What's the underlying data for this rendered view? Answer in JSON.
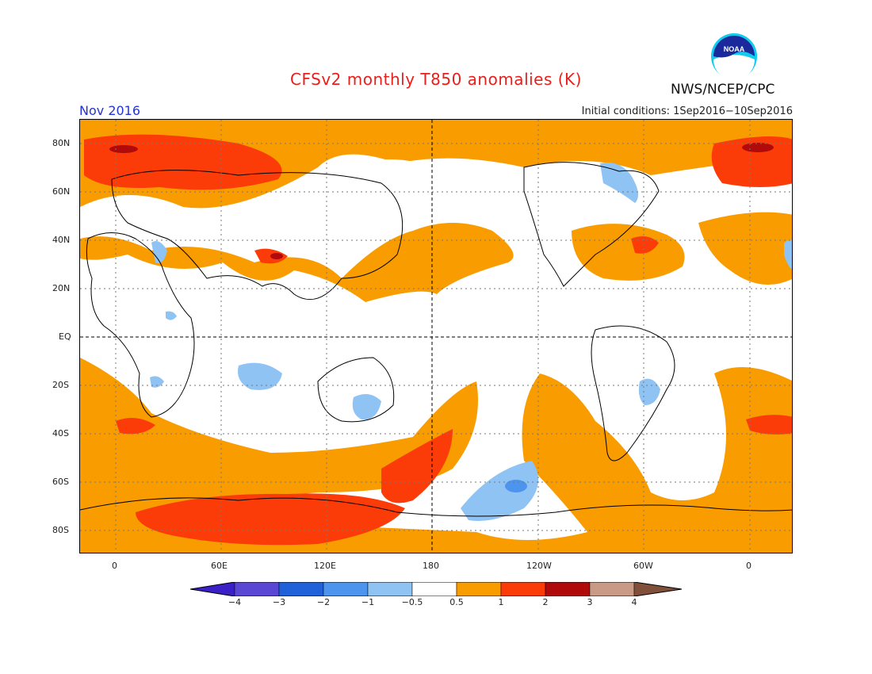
{
  "title": "CFSv2 monthly T850 anomalies (K)",
  "org": "NWS/NCEP/CPC",
  "logo_text": "NOAA",
  "period": "Nov 2016",
  "initial_conditions": "Initial conditions: 1Sep2016−10Sep2016",
  "map": {
    "lat_labels": [
      "80N",
      "60N",
      "40N",
      "20N",
      "EQ",
      "20S",
      "40S",
      "60S",
      "80S"
    ],
    "lon_labels": [
      "0",
      "60E",
      "120E",
      "180",
      "120W",
      "60W",
      "0"
    ]
  },
  "colorbar": {
    "labels": [
      "−4",
      "−3",
      "−2",
      "−1",
      "−0.5",
      "0.5",
      "1",
      "2",
      "3",
      "4"
    ],
    "colors": [
      "#3a20c6",
      "#5a48d4",
      "#2060d8",
      "#4d94ef",
      "#8ec3f3",
      "#ffffff",
      "#f99c00",
      "#fc3c08",
      "#b00a0a",
      "#c99a86",
      "#80503a"
    ]
  }
}
